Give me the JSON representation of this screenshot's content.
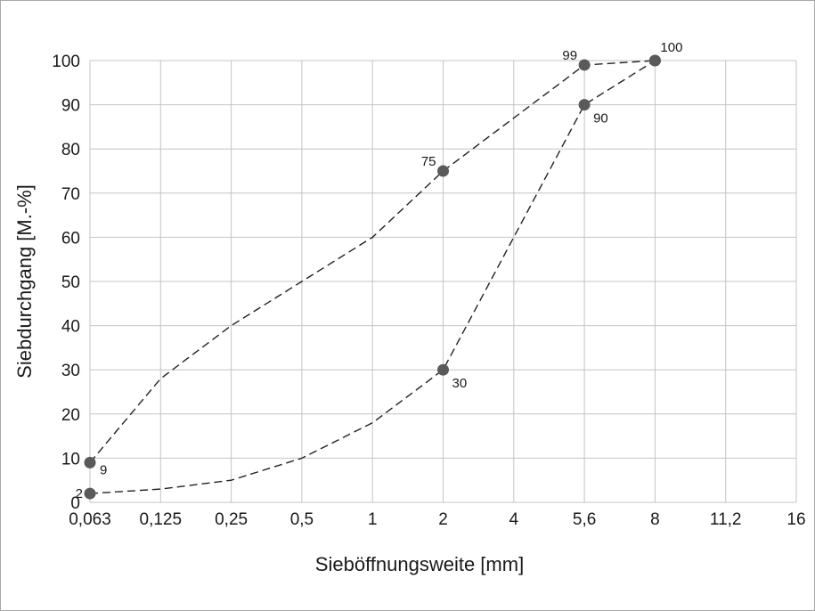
{
  "chart_data": {
    "type": "line",
    "title": "",
    "xlabel": "Sieböffnungsweite [mm]",
    "ylabel": "Siebdurchgang [M.-%]",
    "x_categories": [
      "0,063",
      "0,125",
      "0,25",
      "0,5",
      "1",
      "2",
      "4",
      "5,6",
      "8",
      "11,2",
      "16"
    ],
    "ylim": [
      0,
      100
    ],
    "yticks": [
      0,
      10,
      20,
      30,
      40,
      50,
      60,
      70,
      80,
      90,
      100
    ],
    "ytick_labels": [
      "0",
      "10",
      "20",
      "30",
      "40",
      "50",
      "60",
      "70",
      "80",
      "90",
      "100"
    ],
    "grid": true,
    "legend": "none",
    "series": [
      {
        "color": "#222222",
        "points": [
          {
            "x": "0,063",
            "y": 9,
            "marker": true,
            "label": "9"
          },
          {
            "x": "0,125",
            "y": 28,
            "marker": false
          },
          {
            "x": "0,25",
            "y": 40,
            "marker": false
          },
          {
            "x": "0,5",
            "y": 50,
            "marker": false
          },
          {
            "x": "1",
            "y": 60,
            "marker": false
          },
          {
            "x": "2",
            "y": 75,
            "marker": true,
            "label": "75"
          },
          {
            "x": "5,6",
            "y": 99,
            "marker": true,
            "label": "99"
          },
          {
            "x": "8",
            "y": 100,
            "marker": true,
            "label": "100"
          }
        ]
      },
      {
        "color": "#222222",
        "points": [
          {
            "x": "0,063",
            "y": 2,
            "marker": true,
            "label": "2"
          },
          {
            "x": "0,125",
            "y": 3,
            "marker": false
          },
          {
            "x": "0,25",
            "y": 5,
            "marker": false
          },
          {
            "x": "0,5",
            "y": 10,
            "marker": false
          },
          {
            "x": "1",
            "y": 18,
            "marker": false
          },
          {
            "x": "2",
            "y": 30,
            "marker": true,
            "label": "30"
          },
          {
            "x": "5,6",
            "y": 90,
            "marker": true,
            "label": "90"
          },
          {
            "x": "8",
            "y": 100,
            "marker": true,
            "label": "100"
          }
        ]
      }
    ],
    "marker_color": "#5a5a5a"
  }
}
